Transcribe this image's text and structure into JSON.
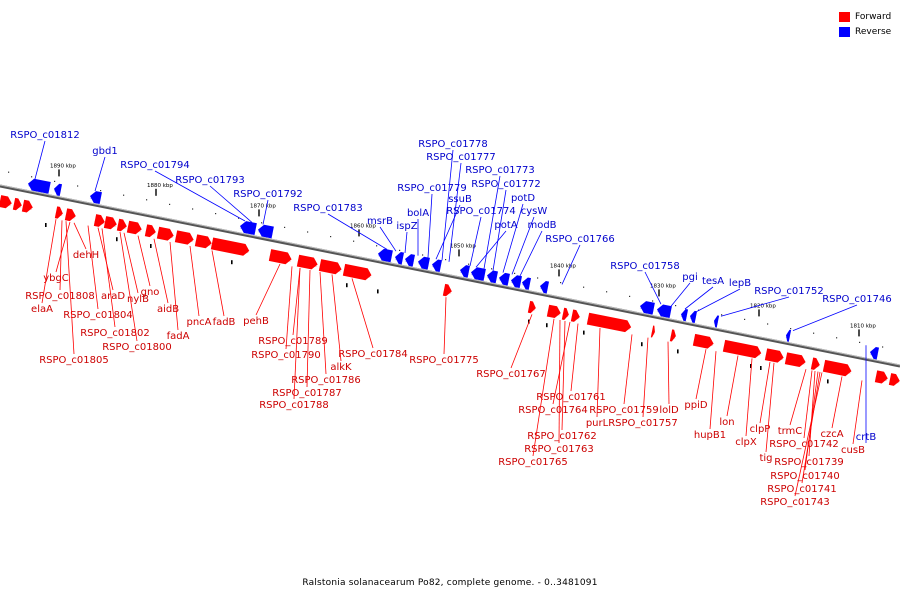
{
  "footer": "Ralstonia solanacearum Po82, complete genome. - 0..3481091",
  "legend": [
    {
      "label": "Forward",
      "color": "#ff0000"
    },
    {
      "label": "Reverse",
      "color": "#0000ff"
    }
  ],
  "colors": {
    "forward": "#ff0000",
    "reverse": "#0000ff",
    "forward_text": "#cc0000",
    "reverse_text": "#0000cc",
    "backbone": "#808080"
  },
  "ticks": [
    {
      "label": "1890 kbp",
      "pos": 1890
    },
    {
      "label": "1880 kbp",
      "pos": 1880
    },
    {
      "label": "1870 kbp",
      "pos": 1870
    },
    {
      "label": "1860 kbp",
      "pos": 1860
    },
    {
      "label": "1850 kbp",
      "pos": 1850
    },
    {
      "label": "1840 kbp",
      "pos": 1840
    },
    {
      "label": "1830 kbp",
      "pos": 1830
    },
    {
      "label": "1820 kbp",
      "pos": 1820
    },
    {
      "label": "1810 kbp",
      "pos": 1810
    }
  ],
  "reverse_genes": [
    "RSPO_c01812",
    "gbd1",
    "RSPO_c01794",
    "RSPO_c01793",
    "RSPO_c01792",
    "RSPO_c01783",
    "msrB",
    "ispZ",
    "bolA",
    "RSPO_c01779",
    "ssuB",
    "RSPO_c01778",
    "RSPO_c01777",
    "RSPO_c01774",
    "potA",
    "RSPO_c01773",
    "RSPO_c01772",
    "potD",
    "cysW",
    "modB",
    "RSPO_c01766",
    "RSPO_c01758",
    "pgi",
    "tesA",
    "lepB",
    "RSPO_c01752",
    "RSPO_c01746",
    "crtB"
  ],
  "forward_genes": [
    "ybgC",
    "RSPO_c01808",
    "elaA",
    "dehH",
    "araD",
    "RSPO_c01804",
    "nylB",
    "gno",
    "RSPO_c01802",
    "RSPO_c01805",
    "aidB",
    "RSPO_c01800",
    "fadA",
    "pncA",
    "fadB",
    "pehB",
    "RSPO_c01789",
    "RSPO_c01790",
    "RSPO_c01784",
    "alkK",
    "RSPO_c01786",
    "RSPO_c01787",
    "RSPO_c01788",
    "RSPO_c01775",
    "RSPO_c01767",
    "RSPO_c01761",
    "RSPO_c01764",
    "RSPO_c01759",
    "purL",
    "RSPO_c01757",
    "lolD",
    "RSPO_c01762",
    "RSPO_c01763",
    "RSPO_c01765",
    "ppiD",
    "lon",
    "hupB1",
    "clpP",
    "clpX",
    "tig",
    "trmC",
    "RSPO_c01742",
    "czcA",
    "cusB",
    "RSPO_c01739",
    "RSPO_c01740",
    "RSPO_c01741",
    "RSPO_c01743"
  ]
}
